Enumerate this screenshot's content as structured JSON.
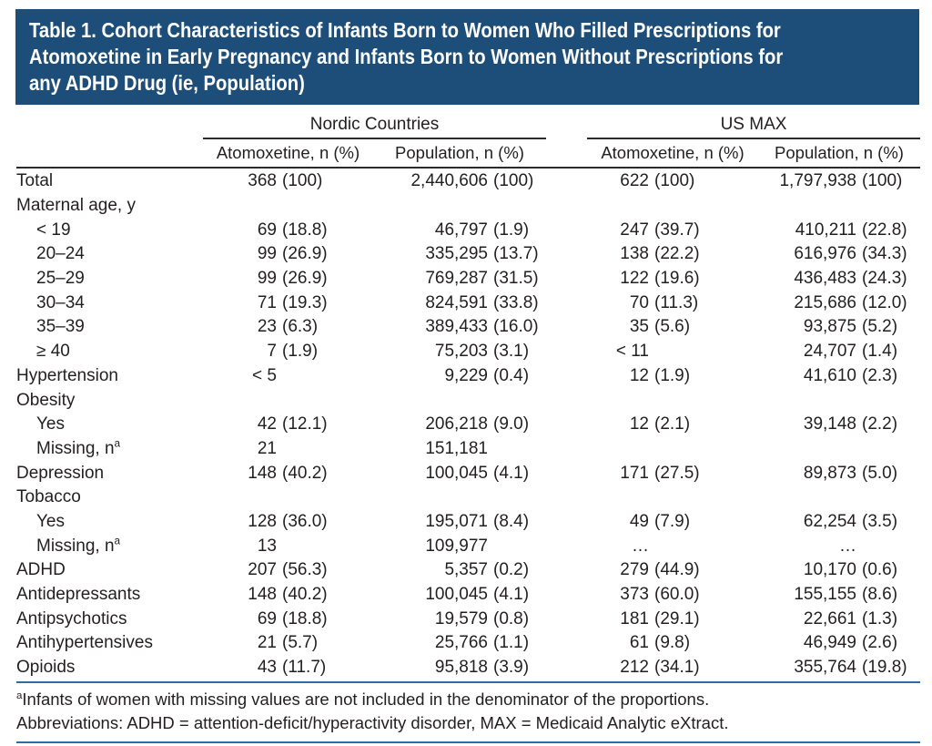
{
  "title": {
    "lines": [
      "Table 1. Cohort Characteristics of Infants Born to Women Who Filled Prescriptions for",
      "Atomoxetine in Early Pregnancy and Infants Born to Women Without Prescriptions for",
      "any ADHD Drug (ie, Population)"
    ]
  },
  "colors": {
    "title_bg": "#1d4e79",
    "title_text": "#ffffff",
    "rule_blue": "#2e6da4",
    "rule_dark": "#2b2b2b",
    "body_text": "#231f20"
  },
  "table": {
    "groups": [
      {
        "label": "Nordic Countries"
      },
      {
        "label": "US MAX"
      }
    ],
    "columns": [
      "Atomoxetine, n (%)",
      "Population, n (%)",
      "Atomoxetine, n (%)",
      "Population, n (%)"
    ],
    "rows": [
      {
        "label": "Total",
        "indent": 0,
        "cells": [
          {
            "n": "368",
            "pct": "(100)"
          },
          {
            "n": "2,440,606",
            "pct": "(100)"
          },
          {
            "n": "622",
            "pct": "(100)"
          },
          {
            "n": "1,797,938",
            "pct": "(100)"
          }
        ]
      },
      {
        "label": "Maternal age, y",
        "indent": 0,
        "cells": [
          null,
          null,
          null,
          null
        ]
      },
      {
        "label": "< 19",
        "indent": 1,
        "cells": [
          {
            "n": "69",
            "pct": "(18.8)"
          },
          {
            "n": "46,797",
            "pct": "(1.9)"
          },
          {
            "n": "247",
            "pct": "(39.7)"
          },
          {
            "n": "410,211",
            "pct": "(22.8)"
          }
        ]
      },
      {
        "label": "20–24",
        "indent": 1,
        "cells": [
          {
            "n": "99",
            "pct": "(26.9)"
          },
          {
            "n": "335,295",
            "pct": "(13.7)"
          },
          {
            "n": "138",
            "pct": "(22.2)"
          },
          {
            "n": "616,976",
            "pct": "(34.3)"
          }
        ]
      },
      {
        "label": "25–29",
        "indent": 1,
        "cells": [
          {
            "n": "99",
            "pct": "(26.9)"
          },
          {
            "n": "769,287",
            "pct": "(31.5)"
          },
          {
            "n": "122",
            "pct": "(19.6)"
          },
          {
            "n": "436,483",
            "pct": "(24.3)"
          }
        ]
      },
      {
        "label": "30–34",
        "indent": 1,
        "cells": [
          {
            "n": "71",
            "pct": "(19.3)"
          },
          {
            "n": "824,591",
            "pct": "(33.8)"
          },
          {
            "n": "70",
            "pct": "(11.3)"
          },
          {
            "n": "215,686",
            "pct": "(12.0)"
          }
        ]
      },
      {
        "label": "35–39",
        "indent": 1,
        "cells": [
          {
            "n": "23",
            "pct": "(6.3)"
          },
          {
            "n": "389,433",
            "pct": "(16.0)"
          },
          {
            "n": "35",
            "pct": "(5.6)"
          },
          {
            "n": "93,875",
            "pct": "(5.2)"
          }
        ]
      },
      {
        "label": "≥ 40",
        "indent": 1,
        "cells": [
          {
            "n": "7",
            "pct": "(1.9)"
          },
          {
            "n": "75,203",
            "pct": "(3.1)"
          },
          {
            "n": "< 11",
            "pct": ""
          },
          {
            "n": "24,707",
            "pct": "(1.4)"
          }
        ]
      },
      {
        "label": "Hypertension",
        "indent": 0,
        "cells": [
          {
            "n": "< 5",
            "pct": ""
          },
          {
            "n": "9,229",
            "pct": "(0.4)"
          },
          {
            "n": "12",
            "pct": "(1.9)"
          },
          {
            "n": "41,610",
            "pct": "(2.3)"
          }
        ]
      },
      {
        "label": "Obesity",
        "indent": 0,
        "cells": [
          null,
          null,
          null,
          null
        ]
      },
      {
        "label": "Yes",
        "indent": 1,
        "cells": [
          {
            "n": "42",
            "pct": "(12.1)"
          },
          {
            "n": "206,218",
            "pct": "(9.0)"
          },
          {
            "n": "12",
            "pct": "(2.1)"
          },
          {
            "n": "39,148",
            "pct": "(2.2)"
          }
        ]
      },
      {
        "label": "Missing, n",
        "sup": "a",
        "indent": 1,
        "cells": [
          {
            "n": "21",
            "pct": ""
          },
          {
            "n": "151,181",
            "pct": ""
          },
          null,
          null
        ]
      },
      {
        "label": "Depression",
        "indent": 0,
        "cells": [
          {
            "n": "148",
            "pct": "(40.2)"
          },
          {
            "n": "100,045",
            "pct": "(4.1)"
          },
          {
            "n": "171",
            "pct": "(27.5)"
          },
          {
            "n": "89,873",
            "pct": "(5.0)"
          }
        ]
      },
      {
        "label": "Tobacco",
        "indent": 0,
        "cells": [
          null,
          null,
          null,
          null
        ]
      },
      {
        "label": "Yes",
        "indent": 1,
        "cells": [
          {
            "n": "128",
            "pct": "(36.0)"
          },
          {
            "n": "195,071",
            "pct": "(8.4)"
          },
          {
            "n": "49",
            "pct": "(7.9)"
          },
          {
            "n": "62,254",
            "pct": "(3.5)"
          }
        ]
      },
      {
        "label": "Missing, n",
        "sup": "a",
        "indent": 1,
        "cells": [
          {
            "n": "13",
            "pct": ""
          },
          {
            "n": "109,977",
            "pct": ""
          },
          {
            "n": "…",
            "pct": ""
          },
          {
            "n": "…",
            "pct": ""
          }
        ]
      },
      {
        "label": "ADHD",
        "indent": 0,
        "cells": [
          {
            "n": "207",
            "pct": "(56.3)"
          },
          {
            "n": "5,357",
            "pct": "(0.2)"
          },
          {
            "n": "279",
            "pct": "(44.9)"
          },
          {
            "n": "10,170",
            "pct": "(0.6)"
          }
        ]
      },
      {
        "label": "Antidepressants",
        "indent": 0,
        "cells": [
          {
            "n": "148",
            "pct": "(40.2)"
          },
          {
            "n": "100,045",
            "pct": "(4.1)"
          },
          {
            "n": "373",
            "pct": "(60.0)"
          },
          {
            "n": "155,155",
            "pct": "(8.6)"
          }
        ]
      },
      {
        "label": "Antipsychotics",
        "indent": 0,
        "cells": [
          {
            "n": "69",
            "pct": "(18.8)"
          },
          {
            "n": "19,579",
            "pct": "(0.8)"
          },
          {
            "n": "181",
            "pct": "(29.1)"
          },
          {
            "n": "22,661",
            "pct": "(1.3)"
          }
        ]
      },
      {
        "label": "Antihypertensives",
        "indent": 0,
        "cells": [
          {
            "n": "21",
            "pct": "(5.7)"
          },
          {
            "n": "25,766",
            "pct": "(1.1)"
          },
          {
            "n": "61",
            "pct": "(9.8)"
          },
          {
            "n": "46,949",
            "pct": "(2.6)"
          }
        ]
      },
      {
        "label": "Opioids",
        "indent": 0,
        "cells": [
          {
            "n": "43",
            "pct": "(11.7)"
          },
          {
            "n": "95,818",
            "pct": "(3.9)"
          },
          {
            "n": "212",
            "pct": "(34.1)"
          },
          {
            "n": "355,764",
            "pct": "(19.8)"
          }
        ]
      }
    ]
  },
  "footnotes": {
    "note_sup": "a",
    "note": "Infants of women with missing values are not included in the denominator of the proportions.",
    "abbreviations": "Abbreviations: ADHD = attention-deficit/hyperactivity disorder, MAX = Medicaid Analytic eXtract."
  }
}
